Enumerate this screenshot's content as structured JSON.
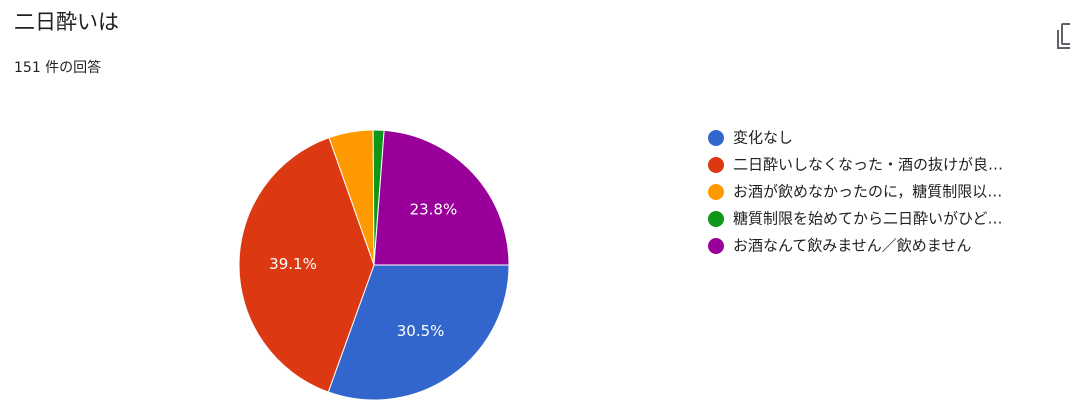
{
  "chart_data": {
    "type": "pie",
    "title": "二日酔いは",
    "subtitle": "151 件の回答",
    "categories": [
      "変化なし",
      "二日酔いしなくなった・酒の抜けが良…",
      "お酒が飲めなかったのに，糖質制限以…",
      "糖質制限を始めてから二日酔いがひど…",
      "お酒なんて飲みません／飲めません"
    ],
    "values": [
      30.5,
      39.1,
      5.3,
      1.3,
      23.8
    ],
    "value_labels": [
      "30.5%",
      "39.1%",
      null,
      null,
      "23.8%"
    ],
    "colors": [
      "#3366cc",
      "#dc3912",
      "#ff9900",
      "#109618",
      "#990099"
    ]
  }
}
